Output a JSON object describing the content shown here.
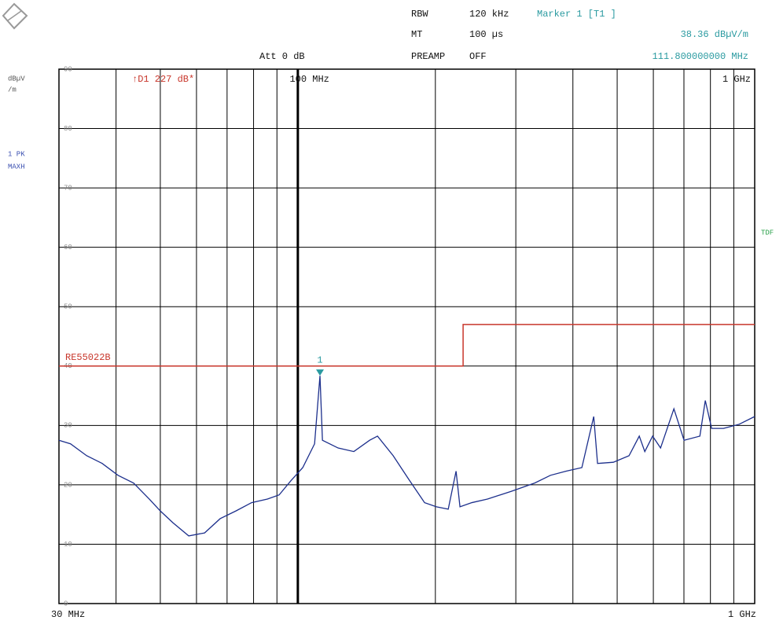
{
  "chart_data": {
    "type": "line",
    "header": [
      {
        "label": "RBW",
        "value": "120 kHz"
      },
      {
        "label": "MT",
        "value": "100 µs"
      },
      {
        "label": "PREAMP",
        "value": "OFF"
      }
    ],
    "attenuation": "Att 0 dB",
    "marker_readout": {
      "title": "Marker 1 [T1 ]",
      "level": "38.36 dBµV/m",
      "frequency": "111.800000000 MHz"
    },
    "y_unit_lines": [
      "dBµV",
      "/m"
    ],
    "trace_info": [
      "1 PK",
      "MAXH"
    ],
    "side_label": "TDF",
    "delta_label": "↑D1 227 dB*",
    "xscale": "log",
    "xlim": [
      30,
      1000
    ],
    "ylim": [
      0,
      90
    ],
    "yticks": [
      0,
      10,
      20,
      30,
      40,
      50,
      60,
      70,
      80,
      90
    ],
    "xgrid": [
      40,
      50,
      60,
      70,
      80,
      90,
      100,
      200,
      300,
      400,
      500,
      600,
      700,
      800,
      900
    ],
    "xticks_bottom": [
      {
        "value": 30,
        "label": "30 MHz"
      },
      {
        "value": 1000,
        "label": "1 GHz"
      }
    ],
    "xticks_top": [
      {
        "value": 100,
        "label": "100 MHz"
      },
      {
        "value": 1000,
        "label": "1 GHz"
      }
    ],
    "grid": true,
    "series": [
      {
        "name": "1 PK MAXH trace",
        "color": "#1c2f8c",
        "x": [
          30,
          31.8,
          34.5,
          37.3,
          40.4,
          43.7,
          47.3,
          50,
          53.3,
          57.7,
          62.5,
          67.6,
          73.2,
          79.2,
          85.8,
          91,
          96.6,
          102.5,
          108.8,
          111.8,
          113.2,
          122.5,
          132.6,
          143.6,
          149.4,
          161.7,
          175,
          189.4,
          201.1,
          213.4,
          222,
          226.4,
          240.4,
          260.1,
          293,
          330,
          357.2,
          386.7,
          418.5,
          444.3,
          452.9,
          490.4,
          530.8,
          558.9,
          574.7,
          597.8,
          622.2,
          665.5,
          700.4,
          758.5,
          779.6,
          804.9,
          854.5,
          925,
          1000
        ],
        "values": [
          27.5,
          26.9,
          24.9,
          23.6,
          21.6,
          20.3,
          17.6,
          15.6,
          13.6,
          11.4,
          11.9,
          14.3,
          15.6,
          17.0,
          17.6,
          18.3,
          20.7,
          22.9,
          26.9,
          38.36,
          27.5,
          26.2,
          25.6,
          27.5,
          28.2,
          24.9,
          20.9,
          17.0,
          16.3,
          15.9,
          22.3,
          16.3,
          17.0,
          17.6,
          18.9,
          20.3,
          21.6,
          22.3,
          22.9,
          31.5,
          23.6,
          23.8,
          24.9,
          28.2,
          25.6,
          28.2,
          26.2,
          32.8,
          27.5,
          28.2,
          34.2,
          29.5,
          29.5,
          30.2,
          31.5
        ]
      },
      {
        "name": "RE55022B",
        "color": "#c8362b",
        "x": [
          30,
          230,
          230,
          1000
        ],
        "values": [
          40,
          40,
          47,
          47
        ]
      }
    ],
    "marker": {
      "label": "1",
      "x": 111.8,
      "value": 38.36,
      "color": "#2a9aa0"
    }
  }
}
